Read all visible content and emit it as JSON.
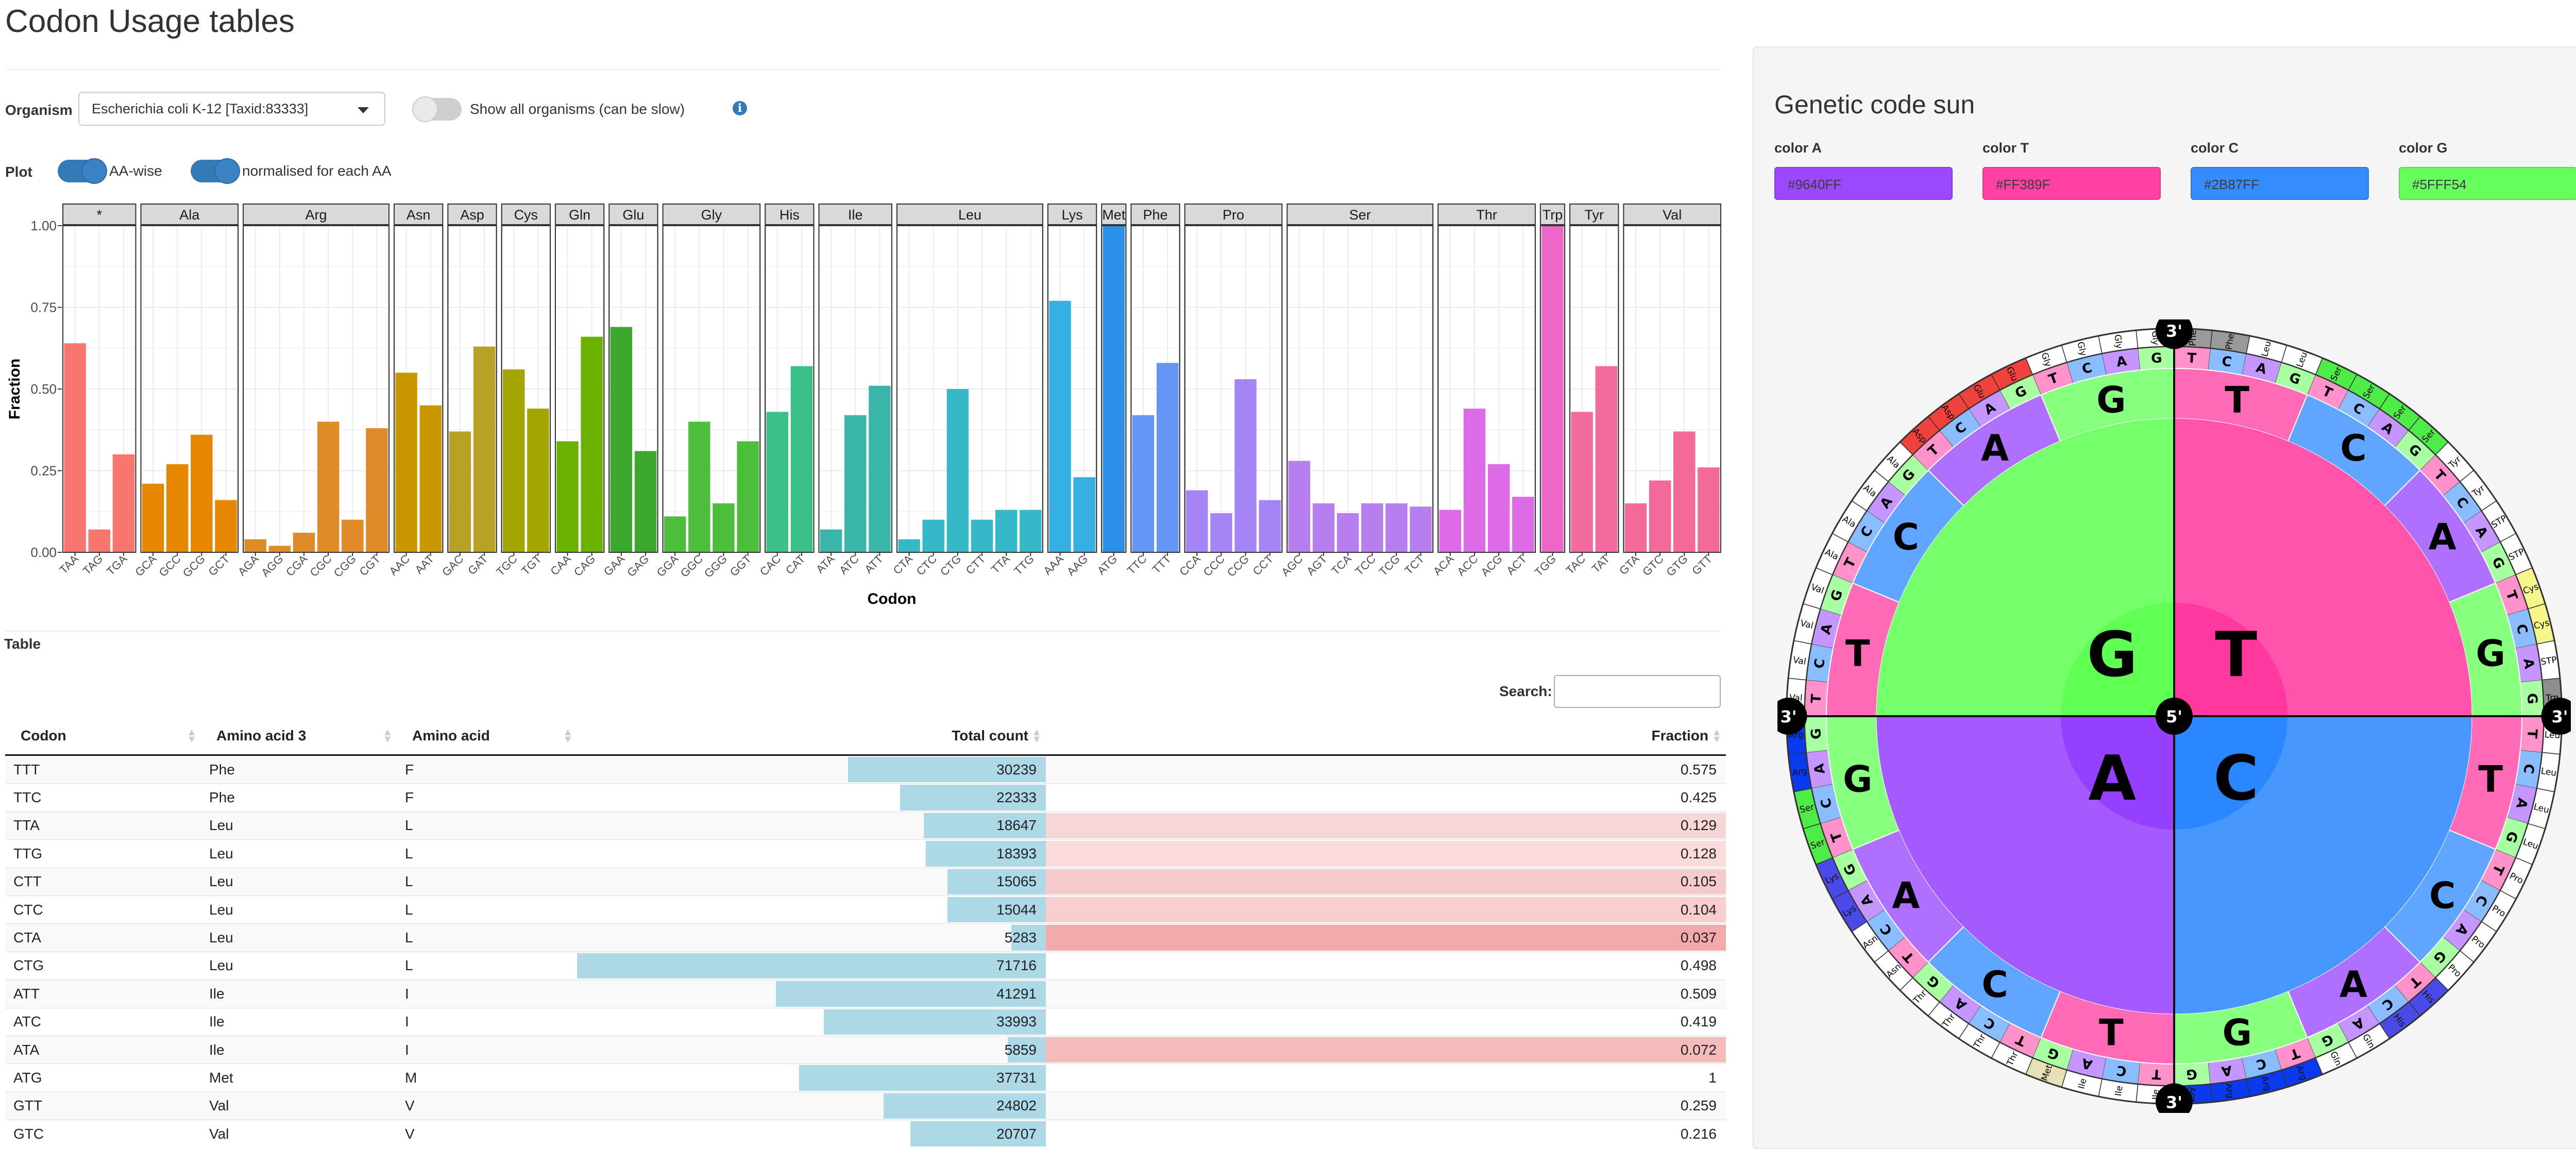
{
  "page_title": "Codon Usage tables",
  "controls": {
    "organism_label": "Organism",
    "organism_value": "Escherichia coli K-12 [Taxid:83333]",
    "show_all_label": "Show all organisms (can be slow)",
    "plot_label": "Plot",
    "aa_wise_label": "AA-wise",
    "normalised_label": "normalised for each AA",
    "show_all_on": false,
    "aa_wise_on": true,
    "normalised_on": true
  },
  "chart_data": {
    "type": "bar",
    "xlabel": "Codon",
    "ylabel": "Fraction",
    "ylim": [
      0,
      1
    ],
    "yticks": [
      "0.00",
      "0.25",
      "0.50",
      "0.75",
      "1.00"
    ],
    "grid": true,
    "facets": [
      {
        "name": "*",
        "color": "#F8766D",
        "codons": [
          "TAA",
          "TAG",
          "TGA"
        ],
        "values": [
          0.64,
          0.07,
          0.3
        ]
      },
      {
        "name": "Ala",
        "color": "#E58700",
        "codons": [
          "GCA",
          "GCC",
          "GCG",
          "GCT"
        ],
        "values": [
          0.21,
          0.27,
          0.36,
          0.16
        ]
      },
      {
        "name": "Arg",
        "color": "#E08B2A",
        "codons": [
          "AGA",
          "AGG",
          "CGA",
          "CGC",
          "CGG",
          "CGT"
        ],
        "values": [
          0.04,
          0.02,
          0.06,
          0.4,
          0.1,
          0.38
        ]
      },
      {
        "name": "Asn",
        "color": "#C99800",
        "codons": [
          "AAC",
          "AAT"
        ],
        "values": [
          0.55,
          0.45
        ]
      },
      {
        "name": "Asp",
        "color": "#B9A125",
        "codons": [
          "GAC",
          "GAT"
        ],
        "values": [
          0.37,
          0.63
        ]
      },
      {
        "name": "Cys",
        "color": "#A3A500",
        "codons": [
          "TGC",
          "TGT"
        ],
        "values": [
          0.56,
          0.44
        ]
      },
      {
        "name": "Gln",
        "color": "#6BB100",
        "codons": [
          "CAA",
          "CAG"
        ],
        "values": [
          0.34,
          0.66
        ]
      },
      {
        "name": "Glu",
        "color": "#3DA82E",
        "codons": [
          "GAA",
          "GAG"
        ],
        "values": [
          0.69,
          0.31
        ]
      },
      {
        "name": "Gly",
        "color": "#4DBD3C",
        "codons": [
          "GGA",
          "GGC",
          "GGG",
          "GGT"
        ],
        "values": [
          0.11,
          0.4,
          0.15,
          0.34
        ]
      },
      {
        "name": "His",
        "color": "#3BC08A",
        "codons": [
          "CAC",
          "CAT"
        ],
        "values": [
          0.43,
          0.57
        ]
      },
      {
        "name": "Ile",
        "color": "#3AB5A9",
        "codons": [
          "ATA",
          "ATC",
          "ATT"
        ],
        "values": [
          0.07,
          0.42,
          0.51
        ]
      },
      {
        "name": "Leu",
        "color": "#35B8C7",
        "codons": [
          "CTA",
          "CTC",
          "CTG",
          "CTT",
          "TTA",
          "TTG"
        ],
        "values": [
          0.04,
          0.1,
          0.5,
          0.1,
          0.13,
          0.13
        ]
      },
      {
        "name": "Lys",
        "color": "#34B0E2",
        "codons": [
          "AAA",
          "AAG"
        ],
        "values": [
          0.77,
          0.23
        ]
      },
      {
        "name": "Met",
        "color": "#2A90E8",
        "codons": [
          "ATG"
        ],
        "values": [
          1.0
        ]
      },
      {
        "name": "Phe",
        "color": "#6596F5",
        "codons": [
          "TTC",
          "TTT"
        ],
        "values": [
          0.42,
          0.58
        ]
      },
      {
        "name": "Pro",
        "color": "#A585F5",
        "codons": [
          "CCA",
          "CCC",
          "CCG",
          "CCT"
        ],
        "values": [
          0.19,
          0.12,
          0.53,
          0.16
        ]
      },
      {
        "name": "Ser",
        "color": "#B77EF0",
        "codons": [
          "AGC",
          "AGT",
          "TCA",
          "TCC",
          "TCG",
          "TCT"
        ],
        "values": [
          0.28,
          0.15,
          0.12,
          0.15,
          0.15,
          0.14
        ]
      },
      {
        "name": "Thr",
        "color": "#DD6BE8",
        "codons": [
          "ACA",
          "ACC",
          "ACG",
          "ACT"
        ],
        "values": [
          0.13,
          0.44,
          0.27,
          0.17
        ]
      },
      {
        "name": "Trp",
        "color": "#EC67C8",
        "codons": [
          "TGG"
        ],
        "values": [
          1.0
        ]
      },
      {
        "name": "Tyr",
        "color": "#F36A9F",
        "codons": [
          "TAC",
          "TAT"
        ],
        "values": [
          0.43,
          0.57
        ]
      },
      {
        "name": "Val",
        "color": "#F2699A",
        "codons": [
          "GTA",
          "GTC",
          "GTG",
          "GTT"
        ],
        "values": [
          0.15,
          0.22,
          0.37,
          0.26
        ]
      }
    ]
  },
  "table": {
    "label": "Table",
    "search_label": "Search:",
    "columns": [
      "Codon",
      "Amino acid 3",
      "Amino acid",
      "Total count",
      "Fraction"
    ],
    "bar_color": "#add8e6",
    "low_fraction_color": "#F08080",
    "rows": [
      {
        "codon": "TTT",
        "aa3": "Phe",
        "aa": "F",
        "count": "30239",
        "fraction": "0.575"
      },
      {
        "codon": "TTC",
        "aa3": "Phe",
        "aa": "F",
        "count": "22333",
        "fraction": "0.425"
      },
      {
        "codon": "TTA",
        "aa3": "Leu",
        "aa": "L",
        "count": "18647",
        "fraction": "0.129"
      },
      {
        "codon": "TTG",
        "aa3": "Leu",
        "aa": "L",
        "count": "18393",
        "fraction": "0.128"
      },
      {
        "codon": "CTT",
        "aa3": "Leu",
        "aa": "L",
        "count": "15065",
        "fraction": "0.105"
      },
      {
        "codon": "CTC",
        "aa3": "Leu",
        "aa": "L",
        "count": "15044",
        "fraction": "0.104"
      },
      {
        "codon": "CTA",
        "aa3": "Leu",
        "aa": "L",
        "count": "5283",
        "fraction": "0.037"
      },
      {
        "codon": "CTG",
        "aa3": "Leu",
        "aa": "L",
        "count": "71716",
        "fraction": "0.498"
      },
      {
        "codon": "ATT",
        "aa3": "Ile",
        "aa": "I",
        "count": "41291",
        "fraction": "0.509"
      },
      {
        "codon": "ATC",
        "aa3": "Ile",
        "aa": "I",
        "count": "33993",
        "fraction": "0.419"
      },
      {
        "codon": "ATA",
        "aa3": "Ile",
        "aa": "I",
        "count": "5859",
        "fraction": "0.072"
      },
      {
        "codon": "ATG",
        "aa3": "Met",
        "aa": "M",
        "count": "37731",
        "fraction": "1"
      },
      {
        "codon": "GTT",
        "aa3": "Val",
        "aa": "V",
        "count": "24802",
        "fraction": "0.259"
      },
      {
        "codon": "GTC",
        "aa3": "Val",
        "aa": "V",
        "count": "20707",
        "fraction": "0.216"
      }
    ]
  },
  "sidebar": {
    "title": "Genetic code sun",
    "colors": [
      {
        "label": "color A",
        "value": "#9640FF"
      },
      {
        "label": "color T",
        "value": "#FF389F"
      },
      {
        "label": "color C",
        "value": "#2B87FF"
      },
      {
        "label": "color G",
        "value": "#5FFF54"
      }
    ]
  },
  "sun": {
    "center_label": "5'",
    "end_label": "3'",
    "first_ring": [
      "T",
      "C",
      "A",
      "G"
    ],
    "bases": [
      "T",
      "C",
      "A",
      "G"
    ],
    "amino_acids": [
      "Phe",
      "Phe",
      "Leu",
      "Leu",
      "Ser",
      "Ser",
      "Ser",
      "Ser",
      "Tyr",
      "Tyr",
      "STP",
      "STP",
      "Cys",
      "Cys",
      "STP",
      "Trp",
      "Leu",
      "Leu",
      "Leu",
      "Leu",
      "Pro",
      "Pro",
      "Pro",
      "Pro",
      "His",
      "His",
      "Gln",
      "Gln",
      "Arg",
      "Arg",
      "Arg",
      "Arg",
      "Ile",
      "Ile",
      "Ile",
      "Met",
      "Thr",
      "Thr",
      "Thr",
      "Thr",
      "Asn",
      "Asn",
      "Lys",
      "Lys",
      "Ser",
      "Ser",
      "Arg",
      "Arg",
      "Val",
      "Val",
      "Val",
      "Val",
      "Ala",
      "Ala",
      "Ala",
      "Ala",
      "Asp",
      "Asp",
      "Glu",
      "Glu",
      "Gly",
      "Gly",
      "Gly",
      "Gly"
    ],
    "aa_colors": {
      "Phe": "#9a9a9a",
      "Leu": "#ffffff",
      "Ser": "#4eec47",
      "Tyr": "#ffffff",
      "STP": "#ffffff",
      "Cys": "#f6f68a",
      "Trp": "#8f8f8f",
      "Pro": "#ffffff",
      "His": "#4a4ae8",
      "Gln": "#ffffff",
      "Arg": "#0a3af0",
      "Ile": "#ffffff",
      "Met": "#e6e2b5",
      "Thr": "#ffffff",
      "Asn": "#ffffff",
      "Lys": "#4a4ae8",
      "Val": "#ffffff",
      "Ala": "#ffffff",
      "Asp": "#f0423c",
      "Glu": "#f0423c",
      "Gly": "#ffffff"
    }
  }
}
